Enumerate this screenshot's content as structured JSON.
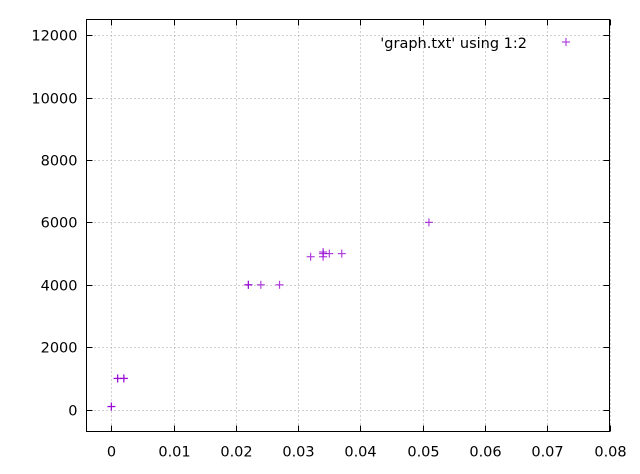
{
  "chart_data": {
    "type": "scatter",
    "title": "",
    "xlabel": "",
    "ylabel": "",
    "xlim": [
      -0.004,
      0.08
    ],
    "ylim": [
      -700,
      12500
    ],
    "x_ticks": [
      "0",
      "0.01",
      "0.02",
      "0.03",
      "0.04",
      "0.05",
      "0.06",
      "0.07",
      "0.08"
    ],
    "y_ticks": [
      "0",
      "2000",
      "4000",
      "6000",
      "8000",
      "10000",
      "12000"
    ],
    "grid": true,
    "legend_position": "top-right",
    "series": [
      {
        "name": "'graph.txt' using 1:2",
        "color": "#9400d3",
        "marker": "plus",
        "points": [
          {
            "x": 0.0,
            "y": 100
          },
          {
            "x": 0.0,
            "y": 100
          },
          {
            "x": 0.001,
            "y": 1000
          },
          {
            "x": 0.001,
            "y": 1000
          },
          {
            "x": 0.002,
            "y": 1000
          },
          {
            "x": 0.002,
            "y": 1000
          },
          {
            "x": 0.022,
            "y": 4000
          },
          {
            "x": 0.022,
            "y": 4000
          },
          {
            "x": 0.024,
            "y": 4000
          },
          {
            "x": 0.027,
            "y": 4000
          },
          {
            "x": 0.032,
            "y": 4900
          },
          {
            "x": 0.034,
            "y": 4900
          },
          {
            "x": 0.034,
            "y": 5000
          },
          {
            "x": 0.034,
            "y": 5050
          },
          {
            "x": 0.035,
            "y": 5000
          },
          {
            "x": 0.037,
            "y": 5000
          },
          {
            "x": 0.051,
            "y": 6000
          }
        ]
      }
    ]
  }
}
